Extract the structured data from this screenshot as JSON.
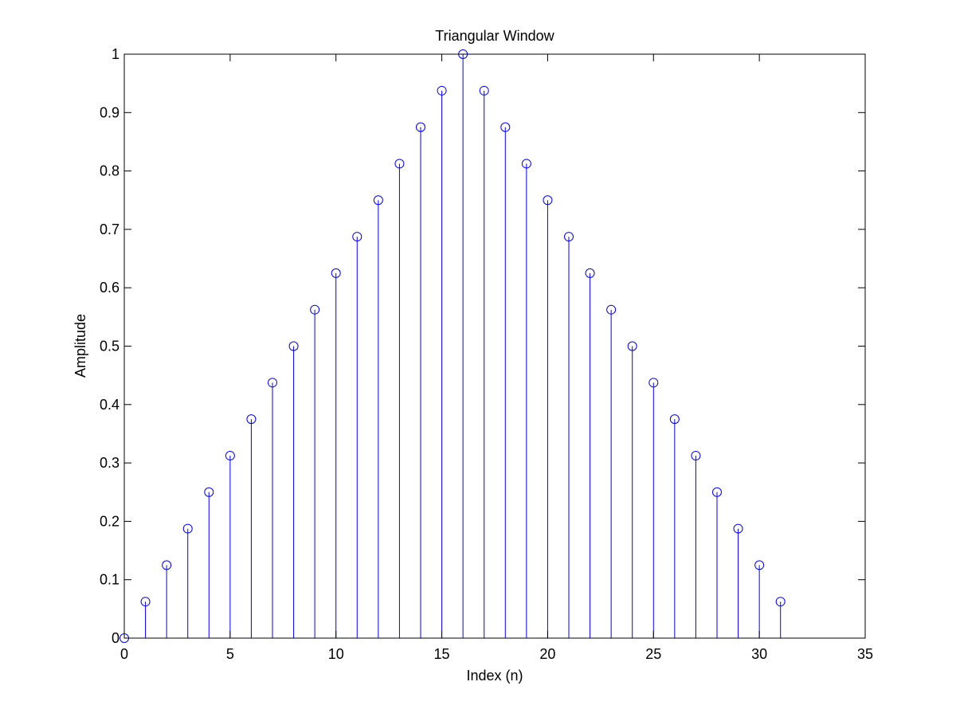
{
  "chart_data": {
    "type": "stem",
    "title": "Triangular Window",
    "xlabel": "Index (n)",
    "ylabel": "Amplitude",
    "xlim": [
      0,
      35
    ],
    "ylim": [
      0,
      1
    ],
    "xticks": [
      0,
      5,
      10,
      15,
      20,
      25,
      30,
      35
    ],
    "yticks": [
      0,
      0.1,
      0.2,
      0.3,
      0.4,
      0.5,
      0.6,
      0.7,
      0.8,
      0.9,
      1
    ],
    "xtick_labels": [
      "0",
      "5",
      "10",
      "15",
      "20",
      "25",
      "30",
      "35"
    ],
    "ytick_labels": [
      "0",
      "0.1",
      "0.2",
      "0.3",
      "0.4",
      "0.5",
      "0.6",
      "0.7",
      "0.8",
      "0.9",
      "1"
    ],
    "grid": false,
    "marker": "open circle",
    "series_color": "#0000ff",
    "x": [
      0,
      1,
      2,
      3,
      4,
      5,
      6,
      7,
      8,
      9,
      10,
      11,
      12,
      13,
      14,
      15,
      16,
      17,
      18,
      19,
      20,
      21,
      22,
      23,
      24,
      25,
      26,
      27,
      28,
      29,
      30,
      31
    ],
    "values": [
      0,
      0.0625,
      0.125,
      0.1875,
      0.25,
      0.3125,
      0.375,
      0.4375,
      0.5,
      0.5625,
      0.625,
      0.6875,
      0.75,
      0.8125,
      0.875,
      0.9375,
      1,
      0.9375,
      0.875,
      0.8125,
      0.75,
      0.6875,
      0.625,
      0.5625,
      0.5,
      0.4375,
      0.375,
      0.3125,
      0.25,
      0.1875,
      0.125,
      0.0625
    ]
  }
}
